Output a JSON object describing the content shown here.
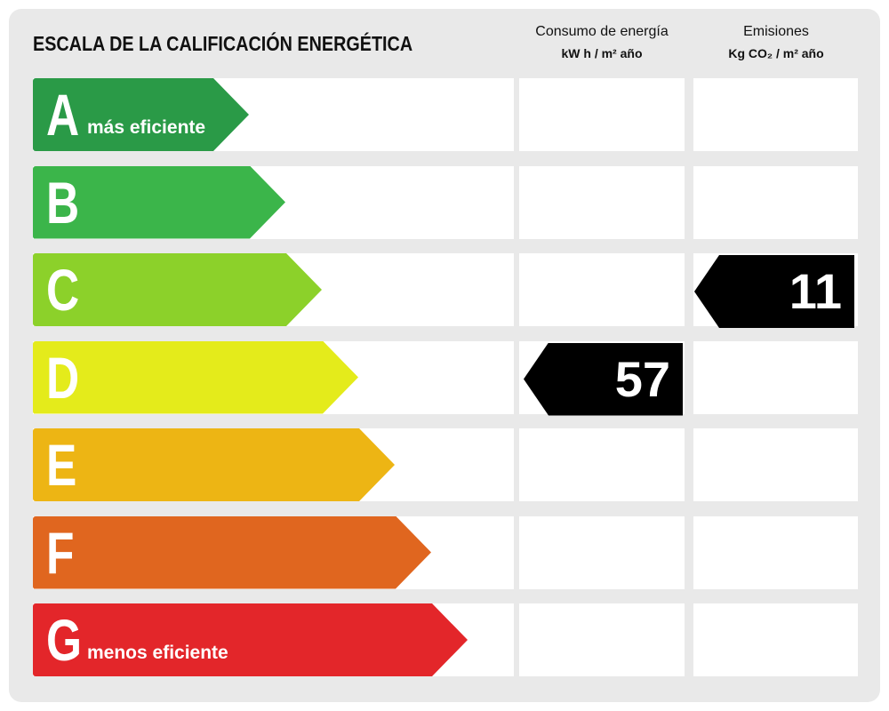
{
  "header": {
    "title": "ESCALA DE LA CALIFICACIÓN ENERGÉTICA",
    "columns": [
      {
        "title": "Consumo de energía",
        "unit": "kW h / m² año"
      },
      {
        "title": "Emisiones",
        "unit": "Kg CO₂ / m² año"
      }
    ]
  },
  "rows": [
    {
      "letter": "A",
      "note": "más eficiente",
      "color": "#2a9a47"
    },
    {
      "letter": "B",
      "color": "#3bb54a"
    },
    {
      "letter": "C",
      "color": "#8cd12a",
      "emisiones": 11
    },
    {
      "letter": "D",
      "color": "#e4eb1b",
      "consumo": 57
    },
    {
      "letter": "E",
      "color": "#edb514"
    },
    {
      "letter": "F",
      "color": "#e0661f"
    },
    {
      "letter": "G",
      "note": "menos eficiente",
      "color": "#e3262a"
    }
  ]
}
